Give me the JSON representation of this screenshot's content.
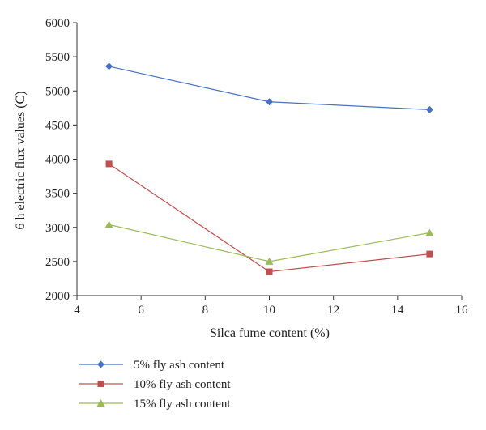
{
  "chart_data": {
    "type": "line",
    "title": "",
    "xlabel": "Silca fume content (%)",
    "ylabel": "6 h electric flux values (C)",
    "xlim": [
      4,
      16
    ],
    "ylim": [
      2000,
      6000
    ],
    "xticks": [
      4,
      6,
      8,
      10,
      12,
      14,
      16
    ],
    "yticks": [
      2000,
      2500,
      3000,
      3500,
      4000,
      4500,
      5000,
      5500,
      6000
    ],
    "grid": false,
    "legend_position": "bottom-left",
    "series": [
      {
        "name": "5% fly ash content",
        "color": "#4472C4",
        "marker": "diamond",
        "x": [
          5,
          10,
          15
        ],
        "y": [
          5360,
          4840,
          4725
        ]
      },
      {
        "name": "10% fly ash content",
        "color": "#C0504D",
        "marker": "square",
        "x": [
          5,
          10,
          15
        ],
        "y": [
          3930,
          2350,
          2610
        ]
      },
      {
        "name": "15% fly ash content",
        "color": "#9BBB59",
        "marker": "triangle",
        "x": [
          5,
          10,
          15
        ],
        "y": [
          3040,
          2500,
          2920
        ]
      }
    ]
  }
}
